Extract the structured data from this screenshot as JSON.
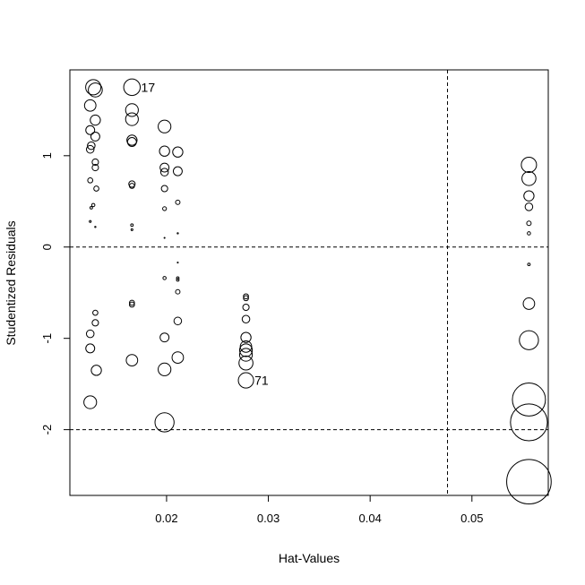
{
  "chart_data": {
    "type": "scatter",
    "title": "",
    "xlabel": "Hat-Values",
    "ylabel": "Studentized Residuals",
    "xlim": [
      0.0105,
      0.0575
    ],
    "ylim": [
      -2.72,
      1.94
    ],
    "x_ticks": [
      0.02,
      0.03,
      0.04,
      0.05
    ],
    "x_tick_labels": [
      "0.02",
      "0.03",
      "0.04",
      "0.05"
    ],
    "y_ticks": [
      -2,
      -1,
      0,
      1
    ],
    "y_tick_labels": [
      "-2",
      "-1",
      "0",
      "1"
    ],
    "reference_lines": [
      {
        "axis": "y",
        "value": 0,
        "style": "dashed"
      },
      {
        "axis": "y",
        "value": -2,
        "style": "dashed"
      },
      {
        "axis": "x",
        "value": 0.0476,
        "style": "dashed"
      }
    ],
    "marker": "open circle, area proportional to Cook's distance",
    "grid": false,
    "points": [
      {
        "x": 0.0128,
        "y": 1.75,
        "size": 12
      },
      {
        "x": 0.013,
        "y": 1.72,
        "size": 11
      },
      {
        "x": 0.0125,
        "y": 1.55,
        "size": 9
      },
      {
        "x": 0.013,
        "y": 1.39,
        "size": 8
      },
      {
        "x": 0.0125,
        "y": 1.28,
        "size": 7
      },
      {
        "x": 0.013,
        "y": 1.21,
        "size": 7
      },
      {
        "x": 0.0126,
        "y": 1.11,
        "size": 6
      },
      {
        "x": 0.0125,
        "y": 1.07,
        "size": 6
      },
      {
        "x": 0.013,
        "y": 0.93,
        "size": 5
      },
      {
        "x": 0.013,
        "y": 0.87,
        "size": 5
      },
      {
        "x": 0.0125,
        "y": 0.73,
        "size": 4
      },
      {
        "x": 0.0131,
        "y": 0.64,
        "size": 4
      },
      {
        "x": 0.0128,
        "y": 0.46,
        "size": 2.5
      },
      {
        "x": 0.0126,
        "y": 0.43,
        "size": 2
      },
      {
        "x": 0.0125,
        "y": 0.28,
        "size": 1.5
      },
      {
        "x": 0.013,
        "y": 0.22,
        "size": 1
      },
      {
        "x": 0.013,
        "y": -0.72,
        "size": 4
      },
      {
        "x": 0.013,
        "y": -0.83,
        "size": 5
      },
      {
        "x": 0.0125,
        "y": -0.95,
        "size": 6
      },
      {
        "x": 0.0125,
        "y": -1.11,
        "size": 7
      },
      {
        "x": 0.0131,
        "y": -1.35,
        "size": 8
      },
      {
        "x": 0.0125,
        "y": -1.7,
        "size": 10
      },
      {
        "x": 0.0166,
        "y": 1.75,
        "size": 13,
        "label": "17"
      },
      {
        "x": 0.0166,
        "y": 1.5,
        "size": 10
      },
      {
        "x": 0.0166,
        "y": 1.4,
        "size": 10
      },
      {
        "x": 0.0166,
        "y": 1.17,
        "size": 8
      },
      {
        "x": 0.0166,
        "y": 1.15,
        "size": 7
      },
      {
        "x": 0.0166,
        "y": 0.69,
        "size": 5
      },
      {
        "x": 0.0166,
        "y": 0.67,
        "size": 4
      },
      {
        "x": 0.0166,
        "y": 0.24,
        "size": 2
      },
      {
        "x": 0.0166,
        "y": 0.19,
        "size": 1.5
      },
      {
        "x": 0.0166,
        "y": -0.61,
        "size": 4
      },
      {
        "x": 0.0166,
        "y": -0.63,
        "size": 4
      },
      {
        "x": 0.0166,
        "y": -1.24,
        "size": 9
      },
      {
        "x": 0.0198,
        "y": 1.32,
        "size": 10
      },
      {
        "x": 0.0198,
        "y": 1.05,
        "size": 8
      },
      {
        "x": 0.0198,
        "y": 0.87,
        "size": 7
      },
      {
        "x": 0.0198,
        "y": 0.82,
        "size": 6
      },
      {
        "x": 0.0198,
        "y": 0.64,
        "size": 5
      },
      {
        "x": 0.0198,
        "y": 0.42,
        "size": 3
      },
      {
        "x": 0.0198,
        "y": 0.1,
        "size": 0.8
      },
      {
        "x": 0.0198,
        "y": -0.34,
        "size": 2.5
      },
      {
        "x": 0.0198,
        "y": -0.99,
        "size": 7
      },
      {
        "x": 0.0198,
        "y": -1.34,
        "size": 10
      },
      {
        "x": 0.0198,
        "y": -1.92,
        "size": 15
      },
      {
        "x": 0.0211,
        "y": 1.04,
        "size": 8
      },
      {
        "x": 0.0211,
        "y": 0.83,
        "size": 7
      },
      {
        "x": 0.0211,
        "y": 0.49,
        "size": 3.5
      },
      {
        "x": 0.0211,
        "y": 0.15,
        "size": 1
      },
      {
        "x": 0.0211,
        "y": -0.17,
        "size": 0.8
      },
      {
        "x": 0.0211,
        "y": -0.34,
        "size": 2
      },
      {
        "x": 0.0211,
        "y": -0.36,
        "size": 2
      },
      {
        "x": 0.0211,
        "y": -0.49,
        "size": 3.5
      },
      {
        "x": 0.0211,
        "y": -0.81,
        "size": 6
      },
      {
        "x": 0.0211,
        "y": -1.21,
        "size": 9
      },
      {
        "x": 0.0278,
        "y": -0.54,
        "size": 4
      },
      {
        "x": 0.0278,
        "y": -0.56,
        "size": 4
      },
      {
        "x": 0.0278,
        "y": -0.66,
        "size": 5
      },
      {
        "x": 0.0278,
        "y": -0.79,
        "size": 6
      },
      {
        "x": 0.0278,
        "y": -0.99,
        "size": 8
      },
      {
        "x": 0.0278,
        "y": -1.09,
        "size": 9
      },
      {
        "x": 0.0278,
        "y": -1.13,
        "size": 10
      },
      {
        "x": 0.0278,
        "y": -1.18,
        "size": 10
      },
      {
        "x": 0.0278,
        "y": -1.27,
        "size": 11
      },
      {
        "x": 0.0278,
        "y": -1.46,
        "size": 12,
        "label": "71"
      },
      {
        "x": 0.0556,
        "y": 0.9,
        "size": 12
      },
      {
        "x": 0.0556,
        "y": 0.75,
        "size": 11
      },
      {
        "x": 0.0556,
        "y": 0.56,
        "size": 8
      },
      {
        "x": 0.0556,
        "y": 0.44,
        "size": 6
      },
      {
        "x": 0.0556,
        "y": 0.26,
        "size": 3.5
      },
      {
        "x": 0.0556,
        "y": 0.15,
        "size": 2.5
      },
      {
        "x": 0.0556,
        "y": -0.19,
        "size": 2
      },
      {
        "x": 0.0556,
        "y": -0.62,
        "size": 9
      },
      {
        "x": 0.0556,
        "y": -1.02,
        "size": 15
      },
      {
        "x": 0.0556,
        "y": -1.67,
        "size": 26
      },
      {
        "x": 0.0556,
        "y": -1.92,
        "size": 29
      },
      {
        "x": 0.0556,
        "y": -2.57,
        "size": 35
      }
    ]
  }
}
